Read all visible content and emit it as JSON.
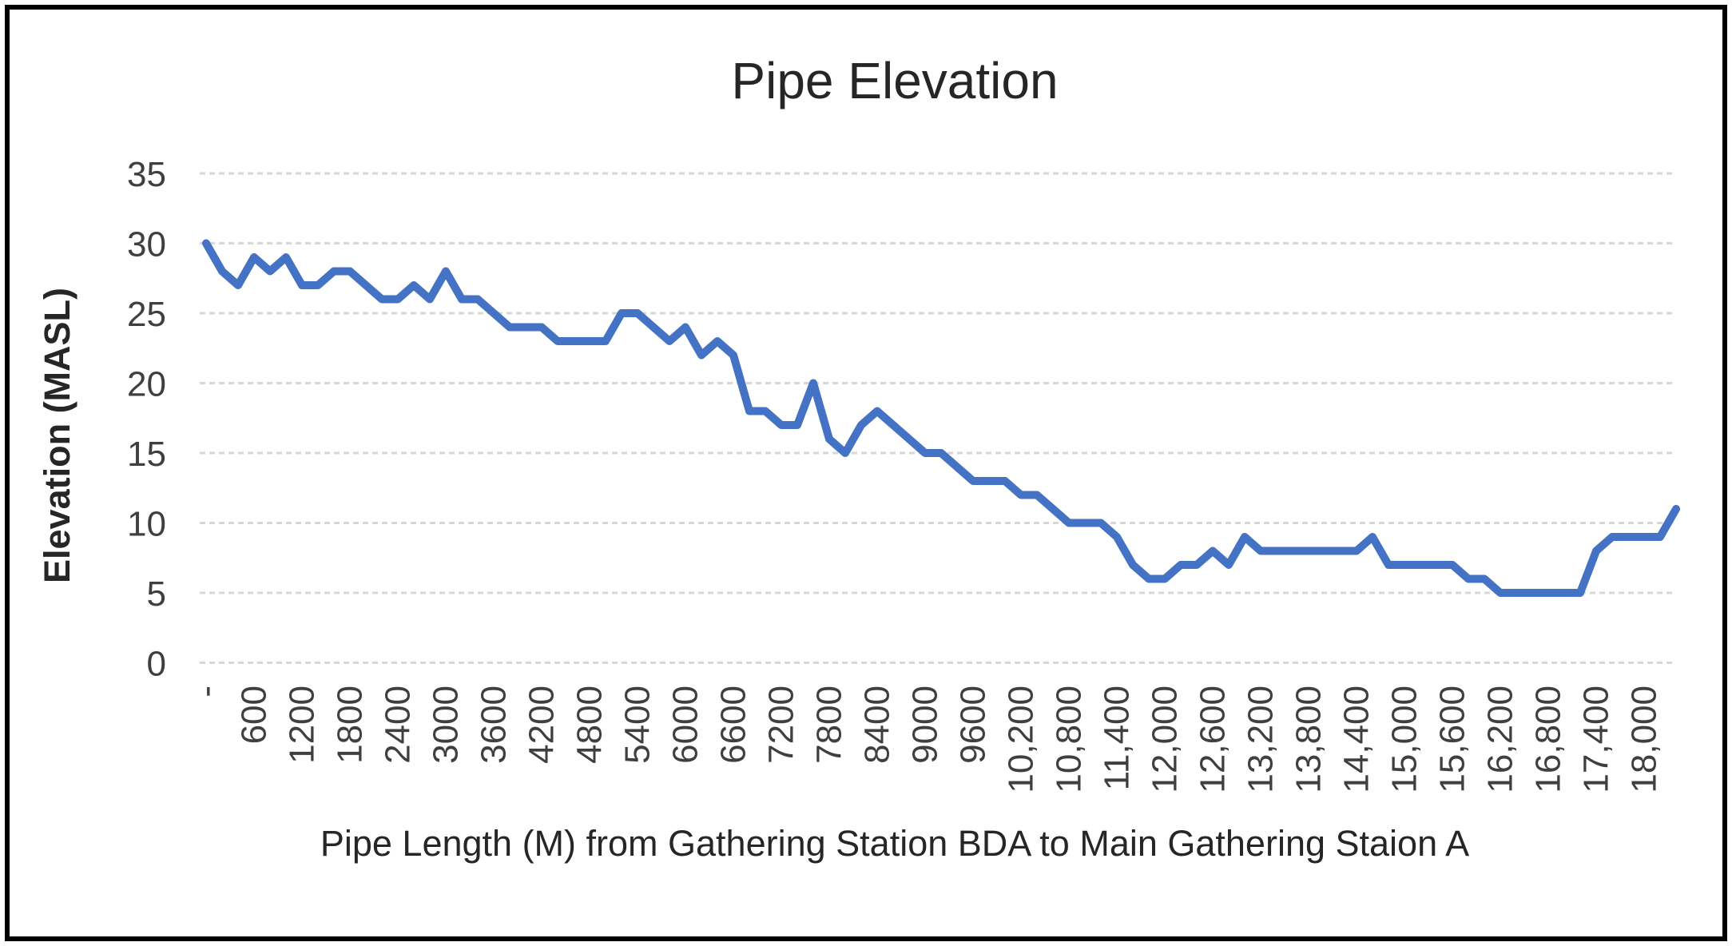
{
  "chart": {
    "title": "Pipe Elevation",
    "y_axis": {
      "title": "Elevation  (MASL)",
      "ticks": [
        35,
        30,
        25,
        20,
        15,
        10,
        5,
        0
      ],
      "min": 0,
      "max": 35,
      "tick_interval": 5
    },
    "x_axis": {
      "title": "Pipe Length (M) from Gathering Station BDA to Main Gathering Staion A",
      "tick_labels": [
        "-",
        "600",
        "1200",
        "1800",
        "2400",
        "3000",
        "3600",
        "4200",
        "4800",
        "5400",
        "6000",
        "6600",
        "7200",
        "7800",
        "8400",
        "9000",
        "9600",
        "10,200",
        "10,800",
        "11,400",
        "12,000",
        "12,600",
        "13,200",
        "13,800",
        "14,400",
        "15,000",
        "15,600",
        "16,200",
        "16,800",
        "17,400",
        "18,000"
      ],
      "tick_interval_m": 600
    },
    "colors": {
      "line": "#4472C4",
      "gridline": "#D7D7D7",
      "tick_text": "#3F3F3F",
      "title_text": "#262626",
      "frame": "#000000"
    }
  },
  "chart_data": {
    "type": "line",
    "title": "Pipe Elevation",
    "xlabel": "Pipe Length (M) from Gathering Station BDA to Main Gathering Staion A",
    "ylabel": "Elevation  (MASL)",
    "legend": false,
    "grid": true,
    "ylim": [
      0,
      35
    ],
    "x_step_m": 200,
    "x": [
      0,
      200,
      400,
      600,
      800,
      1000,
      1200,
      1400,
      1600,
      1800,
      2000,
      2200,
      2400,
      2600,
      2800,
      3000,
      3200,
      3400,
      3600,
      3800,
      4000,
      4200,
      4400,
      4600,
      4800,
      5000,
      5200,
      5400,
      5600,
      5800,
      6000,
      6200,
      6400,
      6600,
      6800,
      7000,
      7200,
      7400,
      7600,
      7800,
      8000,
      8200,
      8400,
      8600,
      8800,
      9000,
      9200,
      9400,
      9600,
      9800,
      10000,
      10200,
      10400,
      10600,
      10800,
      11000,
      11200,
      11400,
      11600,
      11800,
      12000,
      12200,
      12400,
      12600,
      12800,
      13000,
      13200,
      13400,
      13600,
      13800,
      14000,
      14200,
      14400,
      14600,
      14800,
      15000,
      15200,
      15400,
      15600,
      15800,
      16000,
      16200,
      16400,
      16600,
      16800,
      17000,
      17200,
      17400,
      17600,
      17800,
      18000,
      18200,
      18400
    ],
    "y": [
      30,
      28,
      27,
      29,
      28,
      29,
      27,
      27,
      28,
      28,
      27,
      26,
      26,
      27,
      26,
      28,
      26,
      26,
      25,
      24,
      24,
      24,
      23,
      23,
      23,
      23,
      25,
      25,
      24,
      23,
      24,
      22,
      23,
      22,
      18,
      18,
      17,
      17,
      20,
      16,
      15,
      17,
      18,
      17,
      16,
      15,
      15,
      14,
      13,
      13,
      13,
      12,
      12,
      11,
      10,
      10,
      10,
      9,
      7,
      6,
      6,
      7,
      7,
      8,
      7,
      9,
      8,
      8,
      8,
      8,
      8,
      8,
      8,
      9,
      7,
      7,
      7,
      7,
      7,
      6,
      6,
      5,
      5,
      5,
      5,
      5,
      5,
      8,
      9,
      9,
      9,
      9,
      11
    ]
  }
}
